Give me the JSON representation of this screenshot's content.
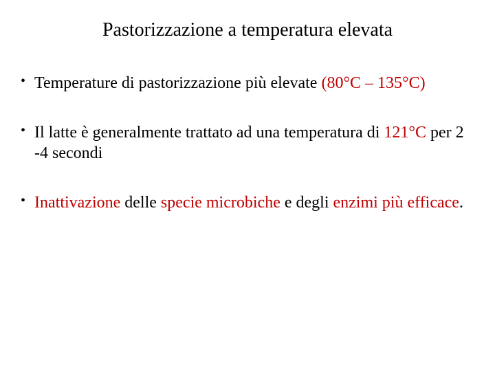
{
  "title": "Pastorizzazione a temperatura elevata",
  "colors": {
    "text": "#000000",
    "highlight": "#c00000",
    "background": "#ffffff"
  },
  "typography": {
    "family": "Times New Roman",
    "title_fontsize": 28,
    "body_fontsize": 24
  },
  "bullets": [
    {
      "segments": [
        {
          "text": "Temperature di pastorizzazione più elevate ",
          "hl": false
        },
        {
          "text": "(80°C – 135°C)",
          "hl": true
        }
      ]
    },
    {
      "segments": [
        {
          "text": "Il latte è generalmente trattato ad una temperatura di ",
          "hl": false
        },
        {
          "text": "121°C",
          "hl": true
        },
        {
          "text": " per 2 -4 secondi",
          "hl": false
        }
      ]
    },
    {
      "segments": [
        {
          "text": "Inattivazione",
          "hl": true
        },
        {
          "text": " delle ",
          "hl": false
        },
        {
          "text": "specie microbiche",
          "hl": true
        },
        {
          "text": " e degli ",
          "hl": false
        },
        {
          "text": "enzimi più efficace",
          "hl": true
        },
        {
          "text": ".",
          "hl": false
        }
      ]
    }
  ]
}
